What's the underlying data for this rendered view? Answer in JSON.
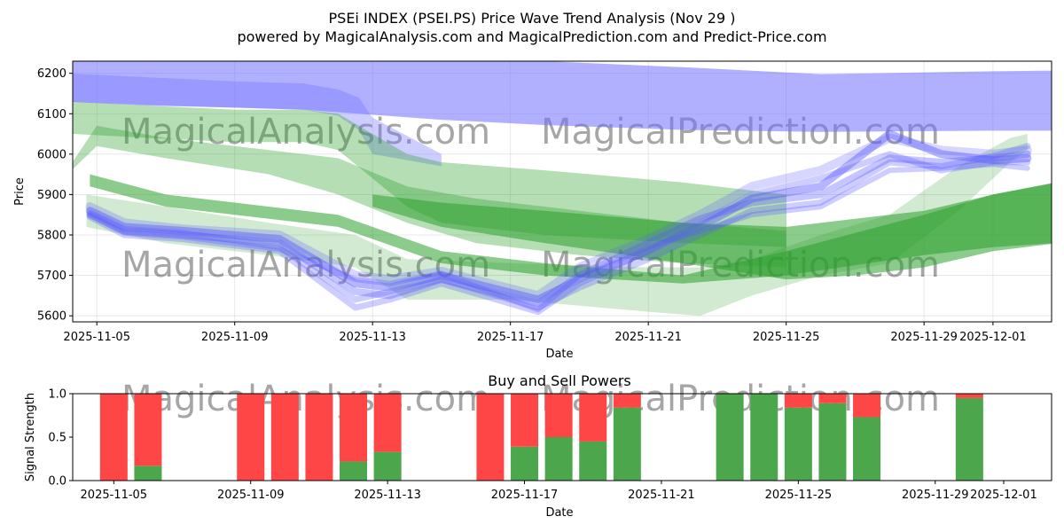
{
  "title": {
    "line1": "PSEi INDEX (PSEI.PS) Price Wave Trend Analysis (Nov 29 )",
    "line2": "powered by MagicalAnalysis.com and MagicalPrediction.com and Predict-Price.com"
  },
  "watermarks": [
    "MagicalAnalysis.com",
    "MagicalPrediction.com"
  ],
  "chart_data": [
    {
      "type": "area",
      "name": "price-wave-chart",
      "xlabel": "Date",
      "ylabel": "Price",
      "ylim": [
        5585,
        6230
      ],
      "yticks": [
        5600,
        5700,
        5800,
        5900,
        6000,
        6100,
        6200
      ],
      "xticks": [
        "2025-11-05",
        "2025-11-09",
        "2025-11-13",
        "2025-11-17",
        "2025-11-21",
        "2025-11-25",
        "2025-11-29",
        "2025-12-01"
      ],
      "xrange_days": [
        -0.7,
        27.7
      ],
      "grid": true,
      "colors": {
        "blue_band": "#7070ff",
        "green_band": "#2ca02c",
        "blue_line": "#5a5aff"
      },
      "bands": [
        {
          "name": "blue-long-upper",
          "color": "blue",
          "opacity": 0.55,
          "x": [
            -0.9,
            1.5,
            4,
            6,
            7.6,
            10,
            13,
            17,
            21,
            26,
            27.9
          ],
          "upper": [
            6230,
            6232,
            6232,
            6232,
            6232,
            6232,
            6230,
            6215,
            6198,
            6205,
            6207
          ],
          "lower": [
            6130,
            6120,
            6115,
            6110,
            6100,
            6085,
            6072,
            6060,
            6055,
            6058,
            6058
          ]
        },
        {
          "name": "blue-long-dark",
          "color": "blue",
          "opacity": 0.35,
          "x": [
            -0.9,
            1.5,
            4,
            6,
            7,
            7.6,
            8,
            10
          ],
          "upper": [
            6200,
            6190,
            6180,
            6175,
            6160,
            6140,
            6090,
            6000
          ],
          "lower": [
            6130,
            6122,
            6115,
            6110,
            6095,
            6060,
            6000,
            5970
          ]
        },
        {
          "name": "green-long-upper",
          "color": "green",
          "opacity": 0.35,
          "x": [
            -0.7,
            1.5,
            4,
            6,
            7,
            8,
            9,
            10,
            13,
            17,
            20
          ],
          "upper": [
            6130,
            6120,
            6110,
            6110,
            6100,
            6050,
            6000,
            5980,
            5960,
            5930,
            5900
          ],
          "lower": [
            6050,
            6040,
            6030,
            6030,
            6010,
            5940,
            5870,
            5830,
            5800,
            5780,
            5770
          ]
        },
        {
          "name": "green-long-mid",
          "color": "green",
          "opacity": 0.35,
          "x": [
            -1.1,
            0,
            2,
            5,
            7,
            9,
            11,
            14,
            17,
            20
          ],
          "upper": [
            5930,
            6070,
            6040,
            6010,
            5990,
            5920,
            5890,
            5860,
            5830,
            5810
          ],
          "lower": [
            5930,
            6020,
            5990,
            5950,
            5900,
            5830,
            5780,
            5750,
            5730,
            5720
          ]
        },
        {
          "name": "green-main",
          "color": "green",
          "opacity": 0.55,
          "x": [
            -0.2,
            2,
            5,
            7,
            9,
            10,
            13,
            17,
            20,
            24,
            26,
            27.8
          ],
          "upper": [
            5950,
            5900,
            5870,
            5850,
            5790,
            5760,
            5730,
            5700,
            5760,
            5850,
            5900,
            5930
          ],
          "lower": [
            5920,
            5870,
            5840,
            5820,
            5760,
            5730,
            5700,
            5680,
            5700,
            5750,
            5770,
            5780
          ]
        },
        {
          "name": "green-right-long",
          "color": "green",
          "opacity": 0.55,
          "x": [
            8,
            10,
            13,
            17,
            20,
            22,
            24,
            26,
            27.9
          ],
          "upper": [
            5900,
            5880,
            5860,
            5830,
            5820,
            5840,
            5860,
            5900,
            5930
          ],
          "lower": [
            5870,
            5820,
            5780,
            5730,
            5690,
            5700,
            5720,
            5760,
            5780
          ]
        },
        {
          "name": "green-fan",
          "color": "green",
          "opacity": 0.22,
          "x": [
            -0.3,
            2,
            5,
            7.5,
            9,
            12,
            16,
            17.5,
            19,
            21,
            23,
            25,
            26.5,
            27
          ],
          "upper": [
            5900,
            5870,
            5830,
            5800,
            5740,
            5730,
            5720,
            5720,
            5740,
            5800,
            5850,
            5970,
            6040,
            6050
          ],
          "lower": [
            5820,
            5780,
            5750,
            5720,
            5640,
            5640,
            5610,
            5600,
            5650,
            5700,
            5730,
            5860,
            5980,
            6010
          ]
        }
      ],
      "lines": [
        {
          "name": "blue-wave-1",
          "color": "blue",
          "width": 9,
          "opacity": 0.45,
          "x": [
            -0.2,
            0.8,
            2.5,
            5.3,
            7.5,
            8.5,
            10,
            12.8,
            14,
            16,
            17.5,
            19,
            21,
            23,
            24.5,
            26,
            27
          ],
          "y": [
            5860,
            5820,
            5810,
            5790,
            5680,
            5670,
            5700,
            5640,
            5690,
            5760,
            5820,
            5890,
            5920,
            6050,
            6000,
            5985,
            5990
          ]
        },
        {
          "name": "blue-wave-2",
          "color": "blue",
          "width": 8,
          "opacity": 0.35,
          "x": [
            -0.2,
            0.8,
            2.5,
            5.3,
            7.5,
            8.5,
            10,
            12.8,
            14,
            16,
            17.5,
            19,
            21,
            23,
            24.5,
            26,
            27
          ],
          "y": [
            5850,
            5810,
            5800,
            5780,
            5660,
            5650,
            5690,
            5630,
            5700,
            5780,
            5840,
            5880,
            5900,
            5990,
            5980,
            5990,
            6000
          ]
        },
        {
          "name": "blue-wave-3",
          "color": "blue",
          "width": 7,
          "opacity": 0.3,
          "x": [
            -0.2,
            0.8,
            2.5,
            5.3,
            7.5,
            8.5,
            10,
            12.8,
            14,
            16,
            17.5,
            19,
            21,
            23,
            24.5,
            26,
            27
          ],
          "y": [
            5845,
            5800,
            5790,
            5760,
            5620,
            5640,
            5680,
            5610,
            5680,
            5760,
            5830,
            5900,
            5940,
            6000,
            5960,
            5980,
            5980
          ]
        },
        {
          "name": "blue-wave-4",
          "color": "blue",
          "width": 10,
          "opacity": 0.25,
          "x": [
            -0.2,
            0.8,
            2.5,
            5.3,
            7.5,
            8.5,
            10,
            12.8,
            14,
            16,
            17.5,
            19,
            21,
            23,
            24.5,
            26,
            27
          ],
          "y": [
            5870,
            5830,
            5815,
            5800,
            5700,
            5690,
            5710,
            5650,
            5720,
            5790,
            5850,
            5920,
            5960,
            6040,
            6010,
            6000,
            6010
          ]
        },
        {
          "name": "blue-wave-5",
          "color": "blue",
          "width": 7,
          "opacity": 0.3,
          "x": [
            -0.2,
            0.8,
            2.5,
            5.3,
            7.5,
            8.5,
            10,
            12.8,
            14,
            16,
            17.5,
            19,
            21,
            23,
            24.5,
            26,
            27
          ],
          "y": [
            5855,
            5815,
            5805,
            5770,
            5640,
            5660,
            5690,
            5620,
            5670,
            5740,
            5800,
            5860,
            5880,
            5980,
            5970,
            5995,
            6020
          ]
        },
        {
          "name": "blue-wave-6",
          "color": "blue",
          "width": 6,
          "opacity": 0.3,
          "x": [
            -0.2,
            0.8,
            2.5,
            5.3,
            7.5,
            8.5,
            10,
            12.8,
            14,
            16,
            17.5,
            19,
            21,
            23,
            24.5,
            26,
            27
          ],
          "y": [
            5850,
            5805,
            5795,
            5765,
            5690,
            5680,
            5705,
            5615,
            5700,
            5770,
            5810,
            5850,
            5870,
            5960,
            5965,
            5975,
            5965
          ]
        }
      ]
    },
    {
      "type": "bar",
      "name": "buy-sell-chart",
      "title": "Buy and Sell Powers",
      "xlabel": "Date",
      "ylabel": "Signal Strength",
      "ylim": [
        0,
        1.0
      ],
      "yticks": [
        0.0,
        0.5,
        1.0
      ],
      "ytick_labels": [
        "0.0",
        "0.5",
        "1.0"
      ],
      "xticks": [
        "2025-11-05",
        "2025-11-09",
        "2025-11-13",
        "2025-11-17",
        "2025-11-21",
        "2025-11-25",
        "2025-11-29",
        "2025-12-01"
      ],
      "xrange_days": [
        -1.2,
        27.4
      ],
      "colors": {
        "buy": "#4ca64c",
        "sell": "#ff4646"
      },
      "days": [
        0,
        1,
        4,
        5,
        6,
        7,
        8,
        11,
        12,
        13,
        14,
        15,
        18,
        19,
        20,
        21,
        22,
        25
      ],
      "buy": [
        0.0,
        0.17,
        0.0,
        0.0,
        0.0,
        0.22,
        0.33,
        0.0,
        0.39,
        0.5,
        0.45,
        0.84,
        1.0,
        1.0,
        0.84,
        0.89,
        0.73,
        0.95
      ],
      "sell": [
        1.0,
        0.83,
        1.0,
        1.0,
        1.0,
        0.78,
        0.67,
        1.0,
        0.61,
        0.5,
        0.55,
        0.16,
        0.0,
        0.0,
        0.16,
        0.11,
        0.27,
        0.05
      ]
    }
  ]
}
